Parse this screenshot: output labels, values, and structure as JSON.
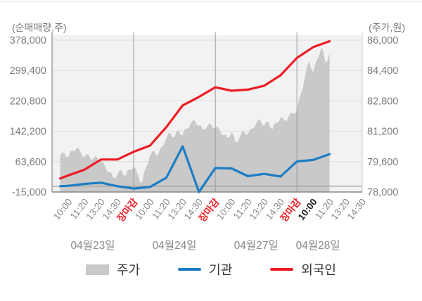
{
  "header": {
    "left_axis_unit": "(순매매량,주)",
    "right_axis_unit": "(주가,원)"
  },
  "colors": {
    "plot_bg": "#f2f2f2",
    "grid": "#dddddd",
    "separator": "#999999",
    "axis": "#888888",
    "zero_line": "#9a9a9a",
    "plot_edge": "#cccccc",
    "tick_text": "#7d7d7d",
    "time_label": "#8a8a8a",
    "close_label": "#ed1c24",
    "current_label": "#222222",
    "date_label": "#8a8a8a",
    "area": "#c9c9c9",
    "institution_blue": "#1c7dc4",
    "foreigner_red": "#ed1c24",
    "legend_text": "#333333",
    "top_border": "#e8e8e8"
  },
  "legend": {
    "items": [
      {
        "label": "주가",
        "type": "area",
        "color": "#c9c9c9"
      },
      {
        "label": "기관",
        "type": "line",
        "color": "#1c7dc4"
      },
      {
        "label": "외국인",
        "type": "line",
        "color": "#ed1c24"
      }
    ]
  },
  "chart_data": {
    "type": "area",
    "subtype": "intraday area + 2 cumulative net-buying lines",
    "left_axis": {
      "label": "(순매매량,주)",
      "ticks": [
        "378,000",
        "299,400",
        "220,800",
        "142,200",
        "63,600",
        "-15,000"
      ],
      "tick_values": [
        378000,
        299400,
        220800,
        142200,
        63600,
        -15000
      ],
      "range": [
        -15000,
        378000
      ]
    },
    "right_axis": {
      "label": "(주가,원)",
      "ticks": [
        "86,000",
        "84,400",
        "82,800",
        "81,200",
        "79,600",
        "78,000"
      ],
      "tick_values": [
        86000,
        84400,
        82800,
        81200,
        79600,
        78000
      ],
      "range": [
        78000,
        86000
      ]
    },
    "x_axis": {
      "labels": [
        {
          "text": "10:00",
          "type": "time"
        },
        {
          "text": "11:20",
          "type": "time"
        },
        {
          "text": "13:20",
          "type": "time"
        },
        {
          "text": "14:30",
          "type": "time"
        },
        {
          "text": "장마감",
          "type": "close"
        },
        {
          "text": "10:00",
          "type": "time"
        },
        {
          "text": "11:20",
          "type": "time"
        },
        {
          "text": "13:20",
          "type": "time"
        },
        {
          "text": "14:30",
          "type": "time"
        },
        {
          "text": "장마감",
          "type": "close"
        },
        {
          "text": "10:00",
          "type": "time"
        },
        {
          "text": "11:20",
          "type": "time"
        },
        {
          "text": "13:20",
          "type": "time"
        },
        {
          "text": "14:30",
          "type": "time"
        },
        {
          "text": "장마감",
          "type": "close"
        },
        {
          "text": "10:00",
          "type": "current"
        },
        {
          "text": "11:20",
          "type": "time"
        },
        {
          "text": "13:20",
          "type": "time"
        },
        {
          "text": "14:30",
          "type": "time"
        }
      ],
      "separator_ticks": [
        4,
        9,
        14
      ],
      "day_labels": [
        "04월23일",
        "04월24일",
        "04월27일",
        "04월28일"
      ],
      "grid_on": true,
      "legend_position": "bottom"
    },
    "series": [
      {
        "name": "주가",
        "type": "area",
        "axis": "right",
        "color": "#c9c9c9",
        "t0": -0.5,
        "dt": 0.25,
        "values": [
          79900,
          80050,
          79850,
          80200,
          80300,
          80100,
          79850,
          79950,
          79700,
          79850,
          79600,
          79350,
          79050,
          78750,
          78900,
          79150,
          78850,
          79200,
          79350,
          78900,
          78450,
          79300,
          79900,
          80150,
          79950,
          80400,
          80850,
          81100,
          80900,
          81250,
          81000,
          81350,
          81600,
          81750,
          81500,
          81300,
          81450,
          81550,
          81400,
          81300,
          81000,
          80850,
          81150,
          80600,
          80900,
          81200,
          81050,
          81350,
          81600,
          81800,
          81500,
          81700,
          81300,
          81650,
          81900,
          81750,
          82000,
          82150,
          82300,
          83200,
          84100,
          84900,
          84300,
          85000,
          85650,
          84800,
          85300
        ]
      },
      {
        "name": "기관",
        "type": "line",
        "axis": "left",
        "color": "#1c7dc4",
        "t": [
          -0.5,
          0,
          1,
          2,
          3,
          4,
          5,
          6,
          7,
          8,
          9,
          10,
          11,
          12,
          13,
          14,
          15,
          16
        ],
        "values": [
          0,
          1000,
          6000,
          9000,
          0,
          -6000,
          -2000,
          22000,
          103000,
          -15000,
          47000,
          46000,
          26000,
          32000,
          25000,
          64000,
          68000,
          83000
        ]
      },
      {
        "name": "외국인",
        "type": "line",
        "axis": "left",
        "color": "#ed1c24",
        "t": [
          -0.5,
          0,
          1,
          2,
          3,
          4,
          5,
          6,
          7,
          8,
          9,
          10,
          11,
          12,
          13,
          14,
          15,
          16
        ],
        "values": [
          20000,
          28000,
          43000,
          69000,
          69000,
          89000,
          105000,
          153000,
          209000,
          231000,
          256000,
          247000,
          250000,
          260000,
          287000,
          332000,
          360000,
          375000
        ]
      }
    ]
  }
}
